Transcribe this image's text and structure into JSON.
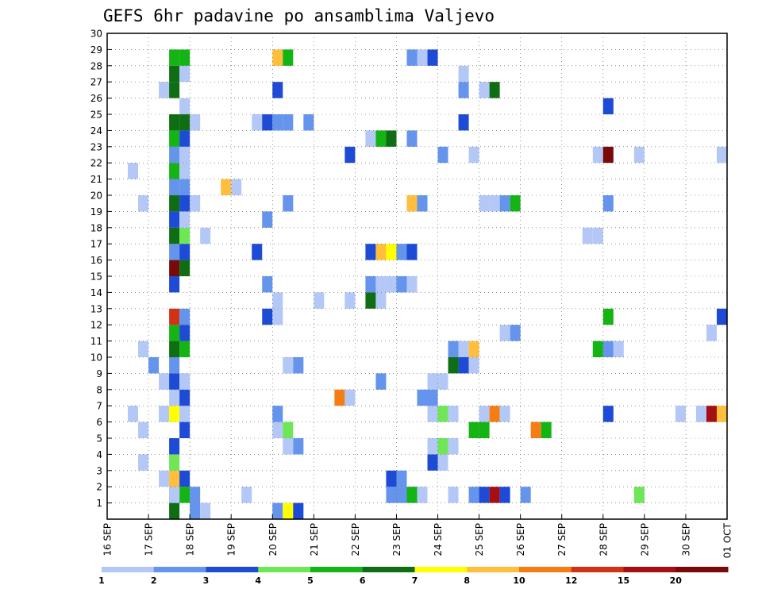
{
  "chart_data": {
    "type": "heatmap",
    "title": "GEFS 6hr padavine po ansamblima Valjevo",
    "x_ticks": [
      "16 SEP",
      "17 SEP",
      "18 SEP",
      "19 SEP",
      "20 SEP",
      "21 SEP",
      "22 SEP",
      "23 SEP",
      "24 SEP",
      "25 SEP",
      "26 SEP",
      "27 SEP",
      "28 SEP",
      "29 SEP",
      "30 SEP",
      "01 OCT"
    ],
    "y_ticks": [
      "1",
      "2",
      "3",
      "4",
      "5",
      "6",
      "7",
      "8",
      "9",
      "10",
      "11",
      "12",
      "13",
      "14",
      "15",
      "16",
      "17",
      "18",
      "19",
      "20",
      "21",
      "22",
      "23",
      "24",
      "25",
      "26",
      "27",
      "28",
      "29",
      "30"
    ],
    "y_range": [
      0,
      30
    ],
    "time_steps": 60,
    "grid": true,
    "colorbar": {
      "labels": [
        "1",
        "2",
        "3",
        "4",
        "5",
        "6",
        "7",
        "8",
        "10",
        "12",
        "15",
        "20"
      ],
      "colors": [
        "#b4c8f8",
        "#6494eb",
        "#1e4bd6",
        "#6ee655",
        "#14b414",
        "#0f6e14",
        "#ffff00",
        "#ffbe3c",
        "#f57d14",
        "#d23214",
        "#a50f14",
        "#780a0a"
      ]
    },
    "cells": [
      {
        "m": 0,
        "t": 6,
        "c": 5
      },
      {
        "m": 0,
        "t": 8,
        "c": 1
      },
      {
        "m": 0,
        "t": 9,
        "c": 0
      },
      {
        "m": 1,
        "t": 6,
        "c": 1
      },
      {
        "m": 1,
        "t": 7,
        "c": 4
      },
      {
        "m": 1,
        "t": 8,
        "c": 1
      },
      {
        "m": 0,
        "t": 16,
        "c": 1
      },
      {
        "m": 0,
        "t": 17,
        "c": 6
      },
      {
        "m": 0,
        "t": 18,
        "c": 2
      },
      {
        "m": 1,
        "t": 6,
        "c": 0
      },
      {
        "m": 1,
        "t": 13,
        "c": 0
      },
      {
        "m": 1,
        "t": 27,
        "c": 1
      },
      {
        "m": 1,
        "t": 28,
        "c": 1
      },
      {
        "m": 1,
        "t": 29,
        "c": 4
      },
      {
        "m": 1,
        "t": 30,
        "c": 0
      },
      {
        "m": 1,
        "t": 33,
        "c": 0
      },
      {
        "m": 1,
        "t": 35,
        "c": 1
      },
      {
        "m": 1,
        "t": 36,
        "c": 2
      },
      {
        "m": 1,
        "t": 37,
        "c": 10
      },
      {
        "m": 1,
        "t": 38,
        "c": 2
      },
      {
        "m": 1,
        "t": 40,
        "c": 1
      },
      {
        "m": 1,
        "t": 51,
        "c": 3
      },
      {
        "m": 2,
        "t": 5,
        "c": 0
      },
      {
        "m": 2,
        "t": 6,
        "c": 7
      },
      {
        "m": 2,
        "t": 7,
        "c": 2
      },
      {
        "m": 2,
        "t": 27,
        "c": 2
      },
      {
        "m": 2,
        "t": 28,
        "c": 1
      },
      {
        "m": 3,
        "t": 3,
        "c": 0
      },
      {
        "m": 3,
        "t": 6,
        "c": 3
      },
      {
        "m": 3,
        "t": 31,
        "c": 2
      },
      {
        "m": 3,
        "t": 32,
        "c": 0
      },
      {
        "m": 4,
        "t": 6,
        "c": 2
      },
      {
        "m": 4,
        "t": 17,
        "c": 0
      },
      {
        "m": 4,
        "t": 18,
        "c": 1
      },
      {
        "m": 4,
        "t": 31,
        "c": 0
      },
      {
        "m": 4,
        "t": 32,
        "c": 3
      },
      {
        "m": 4,
        "t": 33,
        "c": 0
      },
      {
        "m": 5,
        "t": 3,
        "c": 0
      },
      {
        "m": 5,
        "t": 7,
        "c": 2
      },
      {
        "m": 5,
        "t": 16,
        "c": 0
      },
      {
        "m": 5,
        "t": 17,
        "c": 3
      },
      {
        "m": 5,
        "t": 35,
        "c": 4
      },
      {
        "m": 5,
        "t": 36,
        "c": 4
      },
      {
        "m": 5,
        "t": 41,
        "c": 8
      },
      {
        "m": 5,
        "t": 42,
        "c": 4
      },
      {
        "m": 6,
        "t": 2,
        "c": 0
      },
      {
        "m": 6,
        "t": 5,
        "c": 0
      },
      {
        "m": 6,
        "t": 6,
        "c": 6
      },
      {
        "m": 6,
        "t": 7,
        "c": 0
      },
      {
        "m": 6,
        "t": 16,
        "c": 1
      },
      {
        "m": 6,
        "t": 31,
        "c": 0
      },
      {
        "m": 6,
        "t": 32,
        "c": 3
      },
      {
        "m": 6,
        "t": 33,
        "c": 0
      },
      {
        "m": 6,
        "t": 36,
        "c": 0
      },
      {
        "m": 6,
        "t": 37,
        "c": 8
      },
      {
        "m": 6,
        "t": 38,
        "c": 0
      },
      {
        "m": 6,
        "t": 48,
        "c": 2
      },
      {
        "m": 6,
        "t": 55,
        "c": 0
      },
      {
        "m": 6,
        "t": 57,
        "c": 0
      },
      {
        "m": 6,
        "t": 58,
        "c": 10
      },
      {
        "m": 6,
        "t": 59,
        "c": 7
      },
      {
        "m": 6,
        "t": 60,
        "c": 6
      },
      {
        "m": 7,
        "t": 6,
        "c": 0
      },
      {
        "m": 7,
        "t": 7,
        "c": 2
      },
      {
        "m": 7,
        "t": 22,
        "c": 8
      },
      {
        "m": 7,
        "t": 23,
        "c": 0
      },
      {
        "m": 7,
        "t": 30,
        "c": 1
      },
      {
        "m": 7,
        "t": 31,
        "c": 1
      },
      {
        "m": 8,
        "t": 5,
        "c": 0
      },
      {
        "m": 8,
        "t": 6,
        "c": 2
      },
      {
        "m": 8,
        "t": 7,
        "c": 0
      },
      {
        "m": 8,
        "t": 26,
        "c": 1
      },
      {
        "m": 8,
        "t": 31,
        "c": 0
      },
      {
        "m": 8,
        "t": 32,
        "c": 0
      },
      {
        "m": 9,
        "t": 4,
        "c": 1
      },
      {
        "m": 9,
        "t": 6,
        "c": 1
      },
      {
        "m": 9,
        "t": 17,
        "c": 0
      },
      {
        "m": 9,
        "t": 18,
        "c": 1
      },
      {
        "m": 9,
        "t": 33,
        "c": 5
      },
      {
        "m": 9,
        "t": 34,
        "c": 2
      },
      {
        "m": 9,
        "t": 35,
        "c": 0
      },
      {
        "m": 10,
        "t": 3,
        "c": 0
      },
      {
        "m": 10,
        "t": 6,
        "c": 5
      },
      {
        "m": 10,
        "t": 7,
        "c": 4
      },
      {
        "m": 10,
        "t": 33,
        "c": 1
      },
      {
        "m": 10,
        "t": 34,
        "c": 0
      },
      {
        "m": 10,
        "t": 35,
        "c": 7
      },
      {
        "m": 10,
        "t": 47,
        "c": 4
      },
      {
        "m": 10,
        "t": 48,
        "c": 1
      },
      {
        "m": 10,
        "t": 49,
        "c": 0
      },
      {
        "m": 11,
        "t": 6,
        "c": 4
      },
      {
        "m": 11,
        "t": 7,
        "c": 2
      },
      {
        "m": 11,
        "t": 38,
        "c": 0
      },
      {
        "m": 11,
        "t": 39,
        "c": 1
      },
      {
        "m": 11,
        "t": 58,
        "c": 0
      },
      {
        "m": 12,
        "t": 6,
        "c": 9
      },
      {
        "m": 12,
        "t": 7,
        "c": 1
      },
      {
        "m": 12,
        "t": 15,
        "c": 2
      },
      {
        "m": 12,
        "t": 16,
        "c": 0
      },
      {
        "m": 12,
        "t": 48,
        "c": 4
      },
      {
        "m": 12,
        "t": 59,
        "c": 2
      },
      {
        "m": 13,
        "t": 16,
        "c": 0
      },
      {
        "m": 13,
        "t": 20,
        "c": 0
      },
      {
        "m": 13,
        "t": 23,
        "c": 0
      },
      {
        "m": 13,
        "t": 25,
        "c": 5
      },
      {
        "m": 13,
        "t": 26,
        "c": 0
      },
      {
        "m": 14,
        "t": 6,
        "c": 2
      },
      {
        "m": 14,
        "t": 15,
        "c": 1
      },
      {
        "m": 14,
        "t": 25,
        "c": 1
      },
      {
        "m": 14,
        "t": 26,
        "c": 0
      },
      {
        "m": 14,
        "t": 27,
        "c": 0
      },
      {
        "m": 14,
        "t": 28,
        "c": 1
      },
      {
        "m": 14,
        "t": 29,
        "c": 0
      },
      {
        "m": 15,
        "t": 6,
        "c": 11
      },
      {
        "m": 15,
        "t": 7,
        "c": 5
      },
      {
        "m": 16,
        "t": 6,
        "c": 1
      },
      {
        "m": 16,
        "t": 7,
        "c": 2
      },
      {
        "m": 16,
        "t": 14,
        "c": 2
      },
      {
        "m": 16,
        "t": 25,
        "c": 2
      },
      {
        "m": 16,
        "t": 26,
        "c": 7
      },
      {
        "m": 16,
        "t": 27,
        "c": 6
      },
      {
        "m": 16,
        "t": 28,
        "c": 1
      },
      {
        "m": 16,
        "t": 29,
        "c": 2
      },
      {
        "m": 17,
        "t": 6,
        "c": 5
      },
      {
        "m": 17,
        "t": 7,
        "c": 3
      },
      {
        "m": 17,
        "t": 9,
        "c": 0
      },
      {
        "m": 17,
        "t": 46,
        "c": 0
      },
      {
        "m": 17,
        "t": 47,
        "c": 0
      },
      {
        "m": 18,
        "t": 6,
        "c": 2
      },
      {
        "m": 18,
        "t": 7,
        "c": 0
      },
      {
        "m": 18,
        "t": 15,
        "c": 1
      },
      {
        "m": 19,
        "t": 3,
        "c": 0
      },
      {
        "m": 19,
        "t": 6,
        "c": 5
      },
      {
        "m": 19,
        "t": 7,
        "c": 2
      },
      {
        "m": 19,
        "t": 8,
        "c": 0
      },
      {
        "m": 19,
        "t": 17,
        "c": 1
      },
      {
        "m": 19,
        "t": 29,
        "c": 7
      },
      {
        "m": 19,
        "t": 30,
        "c": 1
      },
      {
        "m": 19,
        "t": 36,
        "c": 0
      },
      {
        "m": 19,
        "t": 37,
        "c": 0
      },
      {
        "m": 19,
        "t": 38,
        "c": 1
      },
      {
        "m": 19,
        "t": 39,
        "c": 4
      },
      {
        "m": 19,
        "t": 48,
        "c": 1
      },
      {
        "m": 20,
        "t": 6,
        "c": 1
      },
      {
        "m": 20,
        "t": 7,
        "c": 1
      },
      {
        "m": 20,
        "t": 11,
        "c": 7
      },
      {
        "m": 20,
        "t": 12,
        "c": 0
      },
      {
        "m": 21,
        "t": 2,
        "c": 0
      },
      {
        "m": 21,
        "t": 6,
        "c": 4
      },
      {
        "m": 21,
        "t": 7,
        "c": 0
      },
      {
        "m": 22,
        "t": 6,
        "c": 1
      },
      {
        "m": 22,
        "t": 7,
        "c": 0
      },
      {
        "m": 22,
        "t": 23,
        "c": 2
      },
      {
        "m": 22,
        "t": 32,
        "c": 1
      },
      {
        "m": 22,
        "t": 35,
        "c": 0
      },
      {
        "m": 22,
        "t": 47,
        "c": 0
      },
      {
        "m": 22,
        "t": 48,
        "c": 11
      },
      {
        "m": 22,
        "t": 51,
        "c": 0
      },
      {
        "m": 22,
        "t": 59,
        "c": 0
      },
      {
        "m": 23,
        "t": 6,
        "c": 4
      },
      {
        "m": 23,
        "t": 7,
        "c": 2
      },
      {
        "m": 23,
        "t": 25,
        "c": 0
      },
      {
        "m": 23,
        "t": 26,
        "c": 4
      },
      {
        "m": 23,
        "t": 27,
        "c": 5
      },
      {
        "m": 23,
        "t": 29,
        "c": 1
      },
      {
        "m": 24,
        "t": 6,
        "c": 5
      },
      {
        "m": 24,
        "t": 7,
        "c": 5
      },
      {
        "m": 24,
        "t": 8,
        "c": 0
      },
      {
        "m": 24,
        "t": 14,
        "c": 0
      },
      {
        "m": 24,
        "t": 15,
        "c": 2
      },
      {
        "m": 24,
        "t": 16,
        "c": 1
      },
      {
        "m": 24,
        "t": 17,
        "c": 1
      },
      {
        "m": 24,
        "t": 19,
        "c": 1
      },
      {
        "m": 24,
        "t": 34,
        "c": 2
      },
      {
        "m": 25,
        "t": 7,
        "c": 0
      },
      {
        "m": 25,
        "t": 48,
        "c": 2
      },
      {
        "m": 26,
        "t": 5,
        "c": 0
      },
      {
        "m": 26,
        "t": 6,
        "c": 5
      },
      {
        "m": 26,
        "t": 16,
        "c": 2
      },
      {
        "m": 26,
        "t": 34,
        "c": 1
      },
      {
        "m": 26,
        "t": 36,
        "c": 0
      },
      {
        "m": 26,
        "t": 37,
        "c": 5
      },
      {
        "m": 27,
        "t": 6,
        "c": 5
      },
      {
        "m": 27,
        "t": 7,
        "c": 0
      },
      {
        "m": 27,
        "t": 34,
        "c": 0
      },
      {
        "m": 28,
        "t": 6,
        "c": 4
      },
      {
        "m": 28,
        "t": 7,
        "c": 4
      },
      {
        "m": 28,
        "t": 16,
        "c": 7
      },
      {
        "m": 28,
        "t": 17,
        "c": 4
      },
      {
        "m": 28,
        "t": 29,
        "c": 1
      },
      {
        "m": 28,
        "t": 30,
        "c": 0
      },
      {
        "m": 28,
        "t": 31,
        "c": 2
      }
    ]
  }
}
